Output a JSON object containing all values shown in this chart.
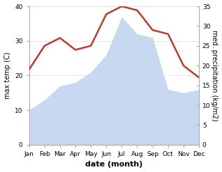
{
  "months": [
    "Jan",
    "Feb",
    "Mar",
    "Apr",
    "May",
    "Jun",
    "Jul",
    "Aug",
    "Sep",
    "Oct",
    "Nov",
    "Dec"
  ],
  "max_temp": [
    10,
    13,
    17,
    18,
    21,
    26,
    37,
    32,
    31,
    16,
    15,
    16
  ],
  "precipitation": [
    19,
    25,
    27,
    24,
    25,
    33,
    35,
    34,
    29,
    28,
    20,
    17
  ],
  "temp_fill_color": "#c8d8f0",
  "precip_color": "#c0392b",
  "ylim_temp": [
    0,
    40
  ],
  "ylim_precip": [
    0,
    35
  ],
  "yticks_temp": [
    0,
    10,
    20,
    30,
    40
  ],
  "yticks_precip": [
    0,
    5,
    10,
    15,
    20,
    25,
    30,
    35
  ],
  "ylabel_left": "max temp (C)",
  "ylabel_right": "med. precipitation (kg/m2)",
  "xlabel": "date (month)",
  "bg_color": "#ffffff",
  "spine_color": "#aaaaaa",
  "tick_color": "#555555",
  "label_fontsize": 7,
  "xlabel_fontsize": 8,
  "tick_fontsize": 6.5,
  "precip_linewidth": 1.8
}
